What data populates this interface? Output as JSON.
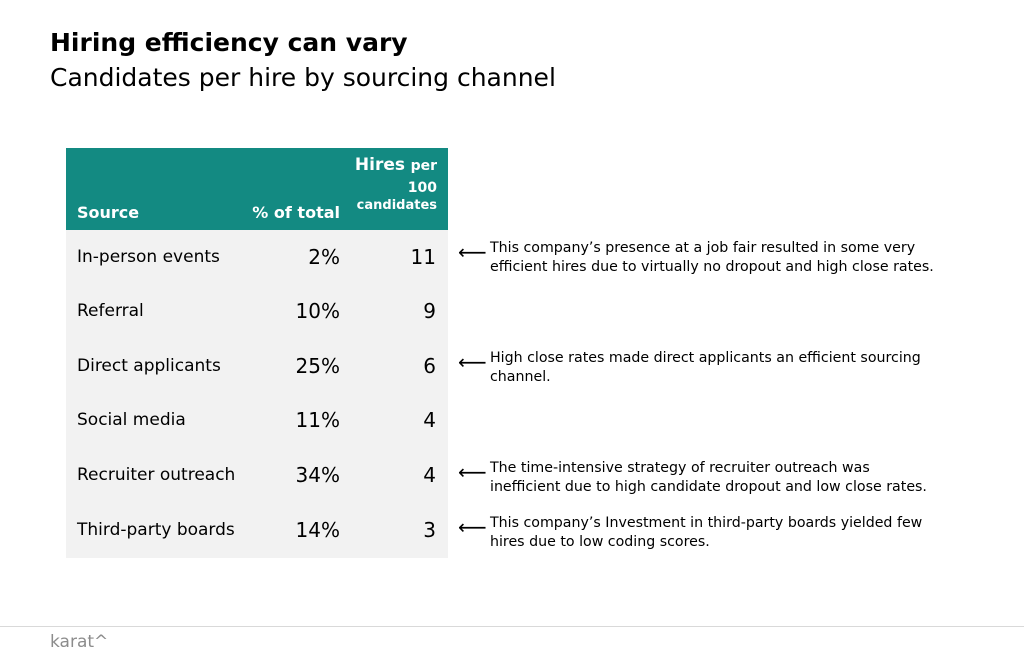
{
  "title": "Hiring efficiency can vary",
  "subtitle": "Candidates per hire by sourcing channel",
  "logo_text": "karat^",
  "colors": {
    "header_bg": "#138a82",
    "table_bg": "#f2f2f2"
  },
  "chart_data": {
    "type": "table",
    "columns": {
      "source": "Source",
      "pct": "% of total",
      "hires_line1": "Hires",
      "hires_line1b": "per",
      "hires_line2": "100",
      "hires_line3": "candidates"
    },
    "rows": [
      {
        "source": "In-person events",
        "pct": "2%",
        "hires": "11",
        "pct_value": 2,
        "hires_value": 11
      },
      {
        "source": "Referral",
        "pct": "10%",
        "hires": "9",
        "pct_value": 10,
        "hires_value": 9
      },
      {
        "source": "Direct applicants",
        "pct": "25%",
        "hires": "6",
        "pct_value": 25,
        "hires_value": 6
      },
      {
        "source": "Social media",
        "pct": "11%",
        "hires": "4",
        "pct_value": 11,
        "hires_value": 4
      },
      {
        "source": "Recruiter outreach",
        "pct": "34%",
        "hires": "4",
        "pct_value": 34,
        "hires_value": 4
      },
      {
        "source": "Third-party boards",
        "pct": "14%",
        "hires": "3",
        "pct_value": 14,
        "hires_value": 3
      }
    ],
    "annotations": [
      {
        "arrow": "⟵",
        "lines": [
          "This company’s presence at a job fair resulted in some very",
          "efficient hires due to virtually no dropout and high close rates."
        ]
      },
      {
        "arrow": "⟵",
        "lines": [
          "High close rates made direct applicants an efficient sourcing",
          "channel."
        ]
      },
      {
        "arrow": "⟵",
        "lines": [
          "The time-intensive strategy of recruiter outreach was",
          "inefficient due to high candidate dropout and low close rates."
        ]
      },
      {
        "arrow": "⟵",
        "lines": [
          "This company’s Investment in third-party boards yielded few",
          "hires due to low coding scores."
        ]
      }
    ]
  }
}
